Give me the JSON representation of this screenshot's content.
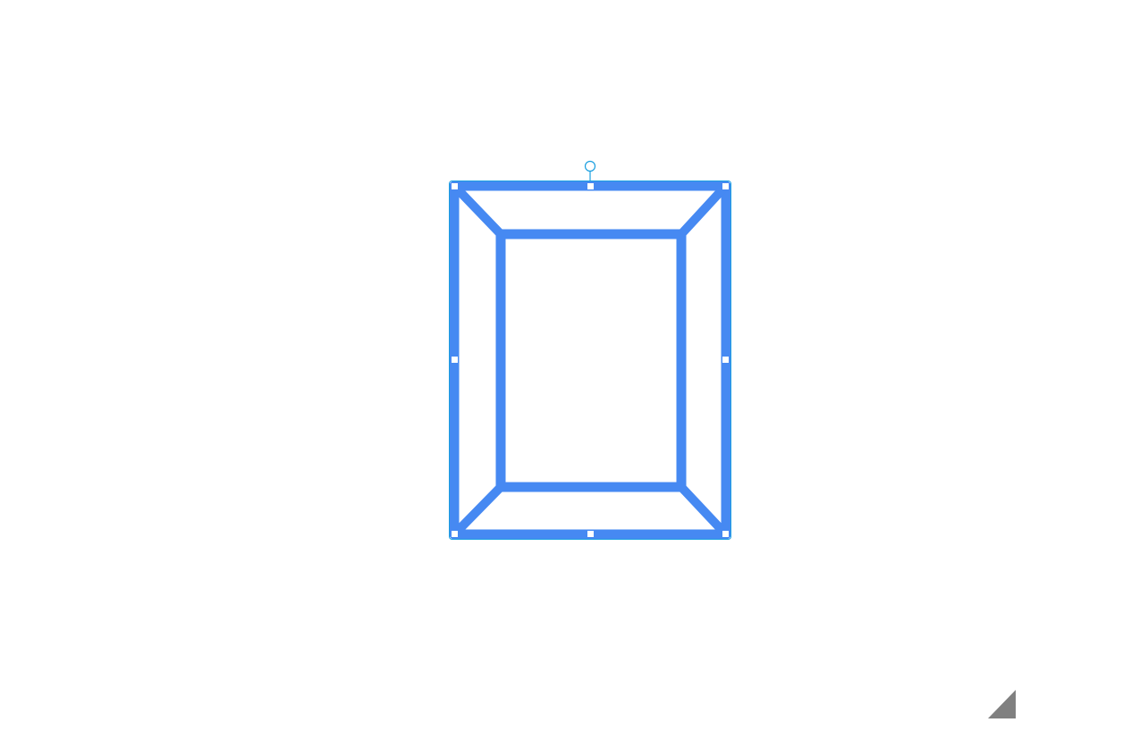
{
  "canvas": {
    "background": "#ffffff"
  },
  "shape": {
    "kind": "frame",
    "stroke_color": "#4689f2",
    "selected": true
  },
  "selection": {
    "outline_color": "#1a9fe0",
    "handle_fill": "#ffffff",
    "resize_handles": [
      "top-left",
      "top-center",
      "top-right",
      "middle-left",
      "middle-right",
      "bottom-left",
      "bottom-center",
      "bottom-right"
    ],
    "rotate_handle": true
  },
  "resize_grip": {
    "icon": "resize-grip-icon",
    "color": "#808080"
  }
}
